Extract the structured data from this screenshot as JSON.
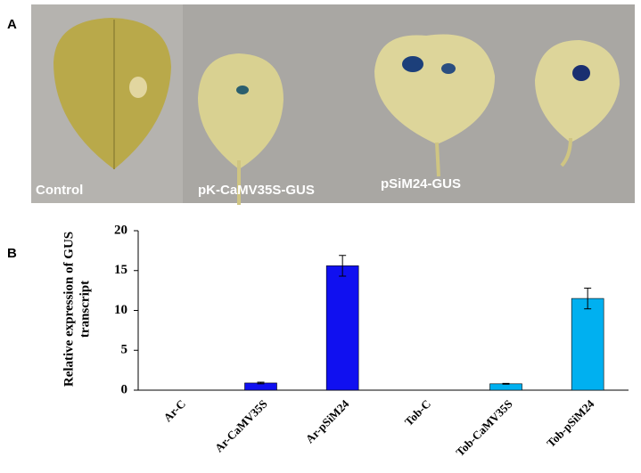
{
  "panels": {
    "a_label": "A",
    "b_label": "B",
    "photo_labels": [
      "Control",
      "pK-CaMV35S-GUS",
      "pSiM24-GUS"
    ]
  },
  "chart_data": {
    "type": "bar",
    "ylabel": [
      "Relative expression of GUS",
      "transcript"
    ],
    "categories": [
      "Ar-C",
      "Ar-CaMV35S",
      "Ar-pSiM24",
      "Tob-C",
      "Tob-CaMV35S",
      "Tob-pSiM24"
    ],
    "values": [
      0,
      0.9,
      15.6,
      0,
      0.8,
      11.5
    ],
    "errors": [
      0,
      0.1,
      1.3,
      0,
      0.05,
      1.3
    ],
    "colors": [
      "#1010f0",
      "#1010f0",
      "#1010f0",
      "#00b0f0",
      "#00b0f0",
      "#00b0f0"
    ],
    "ylim": [
      0,
      20
    ],
    "yticks": [
      0,
      5,
      10,
      15,
      20
    ]
  }
}
